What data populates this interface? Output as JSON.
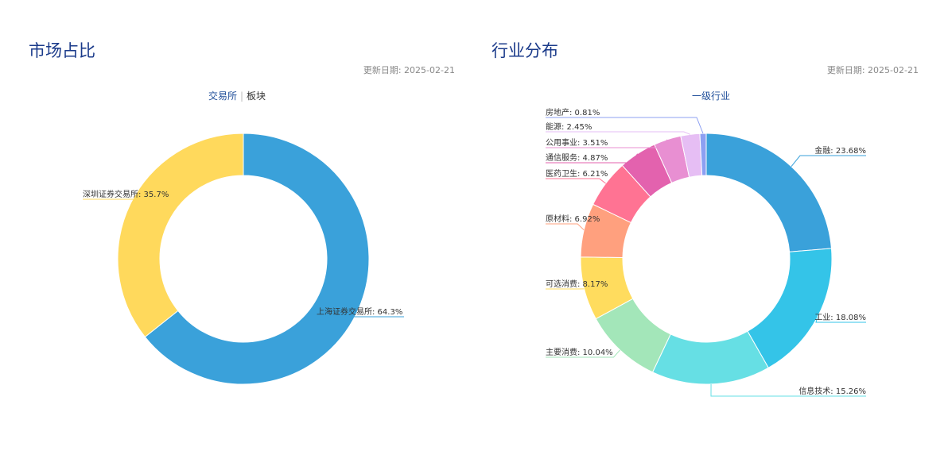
{
  "left": {
    "title": "市场占比",
    "update": "更新日期: 2025-02-21",
    "tabs": [
      "交易所",
      "板块"
    ]
  },
  "right": {
    "title": "行业分布",
    "update": "更新日期: 2025-02-21",
    "tabs": [
      "一级行业"
    ]
  },
  "chart_data": [
    {
      "type": "pie",
      "donut": true,
      "slices": [
        {
          "label": "上海证券交易所",
          "value": 64.3,
          "color": "#3aa1da"
        },
        {
          "label": "深圳证券交易所",
          "value": 35.7,
          "color": "#ffd95c"
        }
      ]
    },
    {
      "type": "pie",
      "donut": true,
      "slices": [
        {
          "label": "金融",
          "value": 23.68,
          "color": "#3aa1da"
        },
        {
          "label": "工业",
          "value": 18.08,
          "color": "#34c4e8"
        },
        {
          "label": "信息技术",
          "value": 15.26,
          "color": "#66dfe4"
        },
        {
          "label": "主要消费",
          "value": 10.04,
          "color": "#a3e6b9"
        },
        {
          "label": "可选消费",
          "value": 8.17,
          "color": "#ffdc5e"
        },
        {
          "label": "原材料",
          "value": 6.92,
          "color": "#ffa07e"
        },
        {
          "label": "医药卫生",
          "value": 6.21,
          "color": "#ff7393"
        },
        {
          "label": "通信服务",
          "value": 4.87,
          "color": "#e362ae"
        },
        {
          "label": "公用事业",
          "value": 3.51,
          "color": "#e88fd2"
        },
        {
          "label": "能源",
          "value": 2.45,
          "color": "#e6bef4"
        },
        {
          "label": "房地产",
          "value": 0.81,
          "color": "#8da0f2"
        }
      ]
    }
  ]
}
